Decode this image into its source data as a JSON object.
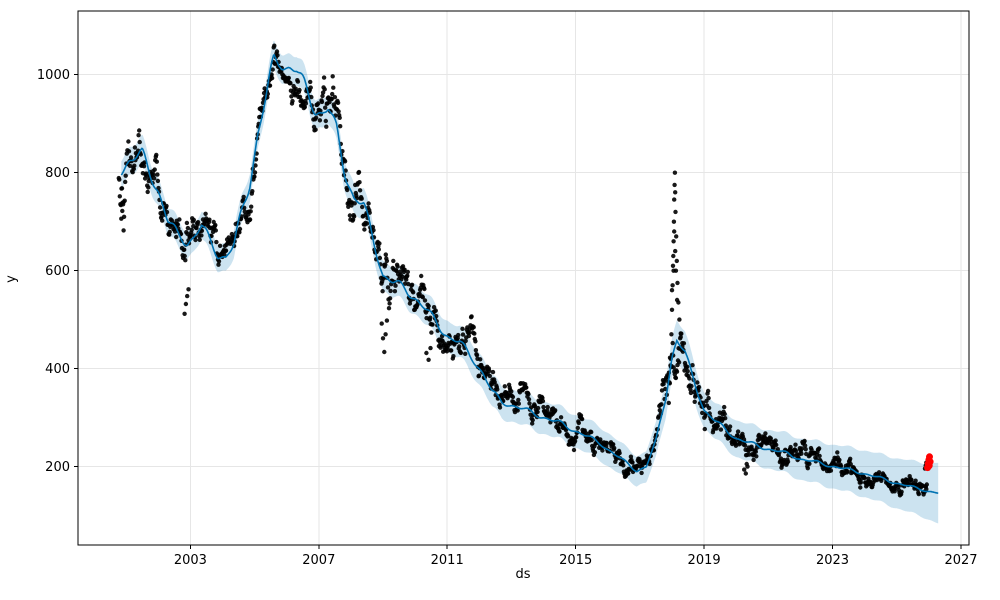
{
  "figure": {
    "background": "#ffffff"
  },
  "chart_data": {
    "type": "scatter",
    "title": "",
    "xlabel": "ds",
    "ylabel": "y",
    "xlim": [
      1999.5,
      2027.25
    ],
    "ylim": [
      40,
      1130
    ],
    "x_ticks": [
      2003,
      2007,
      2011,
      2015,
      2019,
      2023,
      2027
    ],
    "y_ticks": [
      200,
      400,
      600,
      800,
      1000
    ],
    "grid": true,
    "legend": "none",
    "colors": {
      "observations": "#000000",
      "forecast_line": "#0072B2",
      "uncertainty_band": "#0072B2",
      "band_opacity": 0.2,
      "recent_points": "#ff0000",
      "grid": "#e6e6e6",
      "spine": "#000000"
    },
    "series": [
      {
        "name": "observations",
        "type": "scatter"
      },
      {
        "name": "forecast",
        "type": "line"
      },
      {
        "name": "uncertainty",
        "type": "band"
      },
      {
        "name": "recent-actuals",
        "type": "scatter"
      }
    ],
    "forecast_trend": [
      [
        2000.85,
        808
      ],
      [
        2001.1,
        825
      ],
      [
        2001.5,
        835
      ],
      [
        2001.75,
        800
      ],
      [
        2002.0,
        765
      ],
      [
        2002.3,
        700
      ],
      [
        2002.6,
        672
      ],
      [
        2002.9,
        660
      ],
      [
        2003.1,
        668
      ],
      [
        2003.35,
        690
      ],
      [
        2003.6,
        660
      ],
      [
        2003.85,
        635
      ],
      [
        2004.1,
        628
      ],
      [
        2004.35,
        650
      ],
      [
        2004.6,
        718
      ],
      [
        2004.85,
        780
      ],
      [
        2005.1,
        880
      ],
      [
        2005.35,
        950
      ],
      [
        2005.6,
        1028
      ],
      [
        2005.8,
        1030
      ],
      [
        2006.0,
        1018
      ],
      [
        2006.3,
        1008
      ],
      [
        2006.6,
        968
      ],
      [
        2006.9,
        930
      ],
      [
        2007.1,
        922
      ],
      [
        2007.3,
        930
      ],
      [
        2007.55,
        885
      ],
      [
        2007.8,
        805
      ],
      [
        2008.1,
        748
      ],
      [
        2008.4,
        732
      ],
      [
        2008.7,
        662
      ],
      [
        2009.0,
        592
      ],
      [
        2009.3,
        576
      ],
      [
        2009.7,
        562
      ],
      [
        2010.0,
        545
      ],
      [
        2010.4,
        515
      ],
      [
        2010.8,
        482
      ],
      [
        2011.1,
        462
      ],
      [
        2011.4,
        452
      ],
      [
        2011.8,
        420
      ],
      [
        2012.1,
        392
      ],
      [
        2012.4,
        352
      ],
      [
        2012.7,
        332
      ],
      [
        2013.0,
        326
      ],
      [
        2013.4,
        316
      ],
      [
        2013.8,
        306
      ],
      [
        2014.2,
        296
      ],
      [
        2014.6,
        286
      ],
      [
        2015.0,
        273
      ],
      [
        2015.4,
        260
      ],
      [
        2015.8,
        246
      ],
      [
        2016.2,
        226
      ],
      [
        2016.6,
        206
      ],
      [
        2016.9,
        192
      ],
      [
        2017.2,
        200
      ],
      [
        2017.5,
        252
      ],
      [
        2017.8,
        340
      ],
      [
        2018.0,
        425
      ],
      [
        2018.15,
        458
      ],
      [
        2018.4,
        432
      ],
      [
        2018.7,
        372
      ],
      [
        2019.0,
        316
      ],
      [
        2019.35,
        292
      ],
      [
        2019.7,
        274
      ],
      [
        2020.0,
        258
      ],
      [
        2020.4,
        248
      ],
      [
        2020.8,
        240
      ],
      [
        2021.2,
        233
      ],
      [
        2021.6,
        226
      ],
      [
        2022.0,
        216
      ],
      [
        2022.4,
        210
      ],
      [
        2022.8,
        204
      ],
      [
        2023.2,
        198
      ],
      [
        2023.6,
        192
      ],
      [
        2024.0,
        186
      ],
      [
        2024.4,
        178
      ],
      [
        2024.8,
        170
      ],
      [
        2025.2,
        163
      ],
      [
        2025.6,
        156
      ],
      [
        2026.0,
        150
      ],
      [
        2026.3,
        146
      ]
    ],
    "band_halfwidth": [
      [
        2000.85,
        28
      ],
      [
        2004,
        28
      ],
      [
        2008,
        30
      ],
      [
        2012,
        32
      ],
      [
        2016,
        34
      ],
      [
        2017,
        30
      ],
      [
        2018.2,
        42
      ],
      [
        2019,
        36
      ],
      [
        2020.5,
        38
      ],
      [
        2022,
        42
      ],
      [
        2023.5,
        46
      ],
      [
        2024.8,
        50
      ],
      [
        2025.8,
        55
      ],
      [
        2026.3,
        62
      ]
    ],
    "scatter_params": {
      "x_start": 2000.77,
      "x_end": 2025.95,
      "step": 0.0167,
      "seed": 42,
      "ar": 0.88,
      "sigma_profile": [
        [
          2000.85,
          42
        ],
        [
          2001.6,
          30
        ],
        [
          2002.4,
          30
        ],
        [
          2003.2,
          28
        ],
        [
          2004.2,
          22
        ],
        [
          2005.2,
          28
        ],
        [
          2006.2,
          26
        ],
        [
          2007.0,
          30
        ],
        [
          2007.8,
          36
        ],
        [
          2008.6,
          34
        ],
        [
          2009.2,
          38
        ],
        [
          2010.0,
          28
        ],
        [
          2011.0,
          24
        ],
        [
          2012.0,
          26
        ],
        [
          2013.0,
          22
        ],
        [
          2014.0,
          20
        ],
        [
          2015.0,
          18
        ],
        [
          2016.0,
          15
        ],
        [
          2017.0,
          13
        ],
        [
          2017.8,
          30
        ],
        [
          2018.2,
          55
        ],
        [
          2018.7,
          35
        ],
        [
          2019.3,
          22
        ],
        [
          2020.0,
          20
        ],
        [
          2021.0,
          20
        ],
        [
          2022.0,
          17
        ],
        [
          2023.0,
          16
        ],
        [
          2024.0,
          15
        ],
        [
          2025.0,
          13
        ],
        [
          2025.95,
          12
        ]
      ]
    },
    "outlier_points": [
      [
        2000.85,
        706
      ],
      [
        2000.88,
        722
      ],
      [
        2000.92,
        740
      ],
      [
        2002.82,
        512
      ],
      [
        2002.86,
        532
      ],
      [
        2002.9,
        548
      ],
      [
        2002.94,
        562
      ],
      [
        2008.96,
        492
      ],
      [
        2009.0,
        462
      ],
      [
        2009.04,
        434
      ],
      [
        2009.08,
        470
      ],
      [
        2009.12,
        498
      ],
      [
        2010.35,
        432
      ],
      [
        2010.42,
        418
      ],
      [
        2010.48,
        442
      ],
      [
        2020.25,
        194
      ],
      [
        2020.3,
        186
      ],
      [
        2020.35,
        200
      ],
      [
        2025.88,
        196
      ],
      [
        2025.9,
        202
      ],
      [
        2025.92,
        208
      ],
      [
        2025.94,
        200
      ]
    ],
    "spike_points": [
      [
        2017.9,
        330
      ],
      [
        2017.93,
        370
      ],
      [
        2017.96,
        420
      ],
      [
        2017.98,
        470
      ],
      [
        2018.0,
        520
      ],
      [
        2018.02,
        570
      ],
      [
        2018.03,
        610
      ],
      [
        2018.05,
        660
      ],
      [
        2018.06,
        700
      ],
      [
        2018.07,
        745
      ],
      [
        2018.08,
        775
      ],
      [
        2018.09,
        800
      ],
      [
        2018.1,
        760
      ],
      [
        2018.11,
        720
      ],
      [
        2018.13,
        670
      ],
      [
        2018.15,
        620
      ],
      [
        2018.17,
        575
      ],
      [
        2018.2,
        535
      ],
      [
        2018.23,
        500
      ],
      [
        2018.27,
        472
      ],
      [
        2018.32,
        452
      ],
      [
        2018.0,
        560
      ],
      [
        2018.05,
        600
      ],
      [
        2018.1,
        640
      ],
      [
        2018.07,
        680
      ],
      [
        2018.12,
        600
      ],
      [
        2018.16,
        540
      ],
      [
        2018.04,
        630
      ]
    ],
    "recent_points": [
      [
        2025.96,
        198
      ],
      [
        2025.98,
        206
      ],
      [
        2026.0,
        214
      ],
      [
        2026.02,
        220
      ],
      [
        2026.04,
        210
      ],
      [
        2026.01,
        202
      ]
    ]
  }
}
